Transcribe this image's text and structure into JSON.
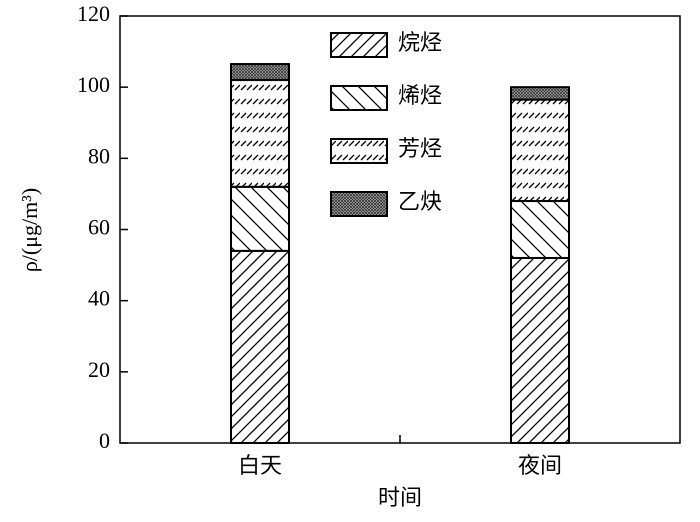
{
  "chart_data": {
    "type": "stacked_bar",
    "x_label": "时间",
    "y_label": "ρ/(μg/m³)",
    "categories": [
      "白天",
      "夜间"
    ],
    "series": [
      {
        "name": "烷烃",
        "hatch": "forward",
        "color": "#000000",
        "values": [
          54,
          52
        ]
      },
      {
        "name": "烯烃",
        "hatch": "back",
        "color": "#000000",
        "values": [
          18,
          16
        ]
      },
      {
        "name": "芳烃",
        "hatch": "dashed",
        "color": "#000000",
        "values": [
          30,
          28.5
        ]
      },
      {
        "name": "乙炔",
        "hatch": "cross",
        "color": "#000000",
        "values": [
          4.5,
          3.5
        ]
      }
    ],
    "ylim": [
      0,
      120
    ],
    "yticks": [
      0,
      20,
      40,
      60,
      80,
      100,
      120
    ],
    "legend": "top"
  }
}
